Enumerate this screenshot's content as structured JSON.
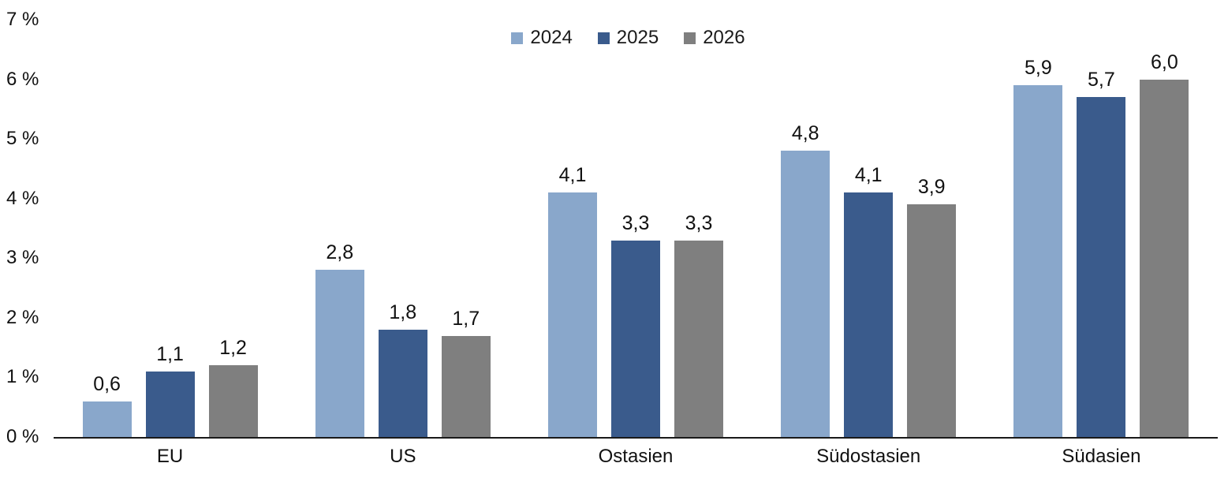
{
  "chart_data": {
    "type": "bar",
    "title": "",
    "categories": [
      "EU",
      "US",
      "Ostasien",
      "Südostasien",
      "Südasien"
    ],
    "series": [
      {
        "name": "2024",
        "color": "#89A7CB",
        "values": [
          0.6,
          2.8,
          4.1,
          4.8,
          5.9
        ],
        "labels": [
          "0,6",
          "2,8",
          "4,1",
          "4,8",
          "5,9"
        ]
      },
      {
        "name": "2025",
        "color": "#3A5B8C",
        "values": [
          1.1,
          1.8,
          3.3,
          4.1,
          5.7
        ],
        "labels": [
          "1,1",
          "1,8",
          "3,3",
          "4,1",
          "5,7"
        ]
      },
      {
        "name": "2026",
        "color": "#7F7F7F",
        "values": [
          1.2,
          1.7,
          3.3,
          3.9,
          6.0
        ],
        "labels": [
          "1,2",
          "1,7",
          "3,3",
          "3,9",
          "6,0"
        ]
      }
    ],
    "y_axis": {
      "min": 0,
      "max": 7,
      "ticks": [
        "0 %",
        "1 %",
        "2 %",
        "3 %",
        "4 %",
        "5 %",
        "6 %",
        "7 %"
      ]
    },
    "legend_position": "top",
    "grid": false,
    "axis_line_color": "#1a1a1a"
  }
}
